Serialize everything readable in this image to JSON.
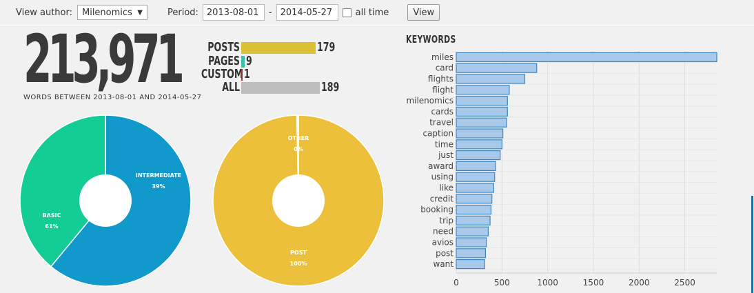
{
  "toolbar": {
    "author_label": "View author:",
    "author_value": "Milenomics",
    "period_label": "Period:",
    "start_date": "2013-08-01",
    "date_separator": "-",
    "end_date": "2014-05-27",
    "all_time_label": "all time",
    "all_time_checked": false,
    "view_button": "View"
  },
  "summary": {
    "word_count": "213,971",
    "caption": "WORDS BETWEEN 2013-08-01 AND 2014-05-27"
  },
  "post_types": [
    {
      "label": "POSTS",
      "value": 179,
      "display": "179",
      "color": "#dcc035"
    },
    {
      "label": "PAGES",
      "value": 9,
      "display": "9",
      "color": "#3bbfb0"
    },
    {
      "label": "CUSTOM",
      "value": 1,
      "display": "1",
      "color": "#8b3a3a"
    },
    {
      "label": "ALL",
      "value": 189,
      "display": "189",
      "color": "#bdbdbd"
    }
  ],
  "chart_data": [
    {
      "type": "pie",
      "slices": [
        {
          "label": "BASIC",
          "percent_label": "61%",
          "value": 61,
          "color": "#1299cc"
        },
        {
          "label": "INTERMEDIATE",
          "percent_label": "39%",
          "value": 39,
          "color": "#14cc96"
        }
      ]
    },
    {
      "type": "pie",
      "slices": [
        {
          "label": "POST",
          "percent_label": "100%",
          "value": 100,
          "color": "#edc03c"
        },
        {
          "label": "OTHER",
          "percent_label": "0%",
          "value": 0.3,
          "color": "#ffffff"
        }
      ]
    },
    {
      "type": "bar",
      "orientation": "horizontal",
      "title": "KEYWORDS",
      "categories": [
        "miles",
        "card",
        "flights",
        "flight",
        "milenomics",
        "cards",
        "travel",
        "caption",
        "time",
        "just",
        "award",
        "using",
        "like",
        "credit",
        "booking",
        "trip",
        "need",
        "avios",
        "post",
        "want"
      ],
      "values": [
        2850,
        880,
        750,
        580,
        560,
        560,
        550,
        510,
        500,
        480,
        430,
        420,
        410,
        390,
        380,
        370,
        350,
        330,
        320,
        310
      ],
      "xlim": [
        0,
        2850
      ],
      "xticks": [
        "0",
        "500",
        "1000",
        "1500",
        "2000",
        "2500"
      ],
      "grid": true,
      "bar_color": "#a9c9ea",
      "bar_border": "#3a87c7"
    }
  ]
}
